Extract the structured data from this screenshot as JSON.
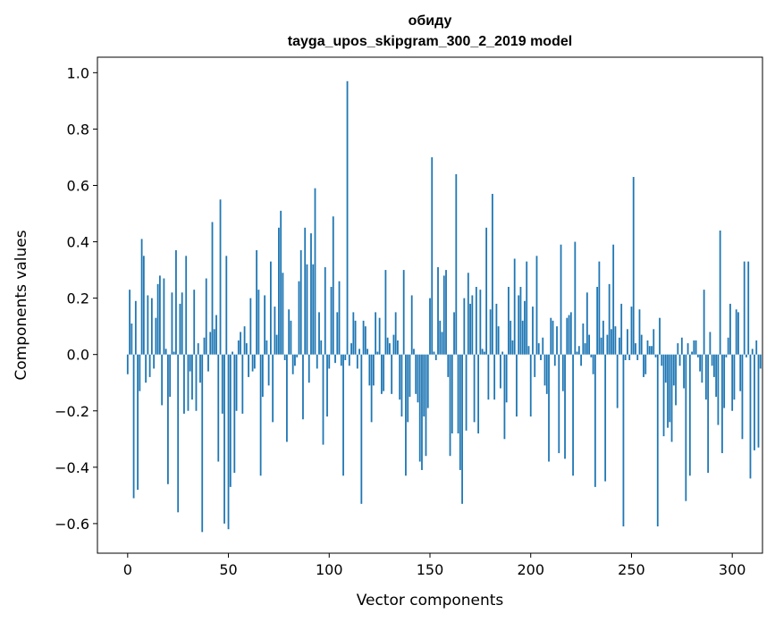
{
  "chart_data": {
    "type": "bar",
    "title": "обиду",
    "subtitle": "tayga_upos_skipgram_300_2_2019 model",
    "xlabel": "Vector components",
    "ylabel": "Components values",
    "xlim": [
      -15,
      315
    ],
    "ylim": [
      -0.705,
      1.055
    ],
    "xticks": [
      0,
      50,
      100,
      150,
      200,
      250,
      300
    ],
    "yticks": [
      -0.6,
      -0.4,
      -0.2,
      0.0,
      0.2,
      0.4,
      0.6,
      0.8,
      1.0
    ],
    "ytick_labels": [
      "−0.6",
      "−0.4",
      "−0.2",
      "0.0",
      "0.2",
      "0.4",
      "0.6",
      "0.8",
      "1.0"
    ],
    "grid": false,
    "bar_color": "#1f77b4",
    "values": [
      -0.07,
      0.23,
      0.11,
      -0.51,
      0.19,
      -0.48,
      -0.13,
      0.41,
      0.35,
      -0.1,
      0.21,
      -0.08,
      0.2,
      -0.05,
      0.13,
      0.25,
      0.28,
      -0.18,
      0.27,
      0.02,
      -0.46,
      -0.15,
      0.22,
      0.01,
      0.37,
      -0.56,
      0.18,
      0.22,
      -0.21,
      0.35,
      -0.2,
      -0.06,
      -0.16,
      0.23,
      -0.2,
      0.04,
      -0.1,
      -0.63,
      0.06,
      0.27,
      -0.06,
      0.08,
      0.47,
      0.09,
      0.14,
      -0.38,
      0.55,
      -0.21,
      -0.6,
      0.35,
      -0.62,
      -0.47,
      0.01,
      -0.42,
      -0.2,
      0.05,
      0.08,
      -0.21,
      0.1,
      0.04,
      -0.08,
      0.2,
      -0.06,
      -0.05,
      0.37,
      0.23,
      -0.43,
      -0.15,
      0.21,
      0.05,
      -0.11,
      0.33,
      -0.24,
      0.17,
      0.07,
      0.45,
      0.51,
      0.29,
      -0.02,
      -0.31,
      0.16,
      0.12,
      -0.07,
      -0.04,
      -0.01,
      0.26,
      0.37,
      -0.23,
      0.45,
      0.32,
      -0.1,
      0.43,
      0.32,
      0.59,
      -0.05,
      0.15,
      0.05,
      -0.32,
      0.31,
      -0.22,
      -0.05,
      0.24,
      0.49,
      -0.03,
      0.15,
      0.26,
      -0.04,
      -0.43,
      -0.02,
      0.97,
      -0.04,
      0.04,
      0.15,
      0.12,
      -0.05,
      0.02,
      -0.53,
      0.12,
      0.1,
      0.02,
      -0.11,
      -0.24,
      -0.11,
      0.15,
      0.01,
      0.13,
      -0.14,
      -0.13,
      0.3,
      0.06,
      0.04,
      -0.14,
      0.07,
      0.15,
      0.05,
      -0.16,
      -0.22,
      0.3,
      -0.43,
      -0.24,
      -0.15,
      0.21,
      0.02,
      -0.14,
      -0.17,
      -0.38,
      -0.41,
      -0.22,
      -0.36,
      -0.19,
      0.2,
      0.7,
      0.01,
      -0.02,
      0.31,
      0.12,
      0.08,
      0.28,
      0.3,
      -0.08,
      -0.36,
      -0.28,
      0.15,
      0.64,
      -0.28,
      -0.41,
      -0.53,
      0.2,
      -0.27,
      0.29,
      0.18,
      0.21,
      -0.24,
      0.24,
      -0.28,
      0.23,
      0.02,
      0.01,
      0.45,
      -0.16,
      0.16,
      0.57,
      -0.16,
      0.18,
      0.1,
      -0.12,
      0.01,
      -0.3,
      -0.17,
      0.24,
      0.12,
      0.05,
      0.34,
      -0.22,
      0.21,
      0.24,
      0.12,
      0.19,
      0.33,
      0.03,
      -0.22,
      0.17,
      -0.08,
      0.35,
      0.04,
      -0.02,
      0.06,
      -0.11,
      -0.14,
      -0.38,
      0.13,
      0.12,
      -0.04,
      0.1,
      -0.35,
      0.39,
      -0.13,
      -0.37,
      0.13,
      0.14,
      0.15,
      -0.43,
      0.4,
      0.01,
      0.03,
      -0.04,
      0.11,
      0.04,
      0.22,
      0.07,
      -0.01,
      -0.07,
      -0.47,
      0.24,
      0.33,
      0.06,
      0.12,
      -0.45,
      0.07,
      0.25,
      0.09,
      0.39,
      0.1,
      -0.19,
      0.06,
      0.18,
      -0.61,
      -0.02,
      0.09,
      -0.02,
      0.17,
      0.63,
      0.04,
      -0.02,
      0.16,
      0.07,
      -0.08,
      -0.07,
      0.05,
      0.03,
      0.03,
      0.09,
      -0.01,
      -0.61,
      0.13,
      -0.04,
      -0.29,
      -0.1,
      -0.26,
      -0.24,
      -0.31,
      -0.11,
      -0.18,
      0.04,
      -0.04,
      0.06,
      -0.12,
      -0.52,
      0.04,
      -0.43,
      0.01,
      0.05,
      0.05,
      -0.01,
      -0.06,
      -0.1,
      0.23,
      -0.16,
      -0.42,
      0.08,
      -0.04,
      -0.08,
      -0.15,
      -0.25,
      0.44,
      -0.35,
      -0.19,
      -0.01,
      0.06,
      0.18,
      -0.2,
      -0.16,
      0.16,
      0.15,
      -0.13,
      -0.3,
      0.33,
      -0.01,
      0.33,
      -0.44,
      0.02,
      -0.34,
      0.05,
      -0.33,
      -0.05
    ]
  }
}
